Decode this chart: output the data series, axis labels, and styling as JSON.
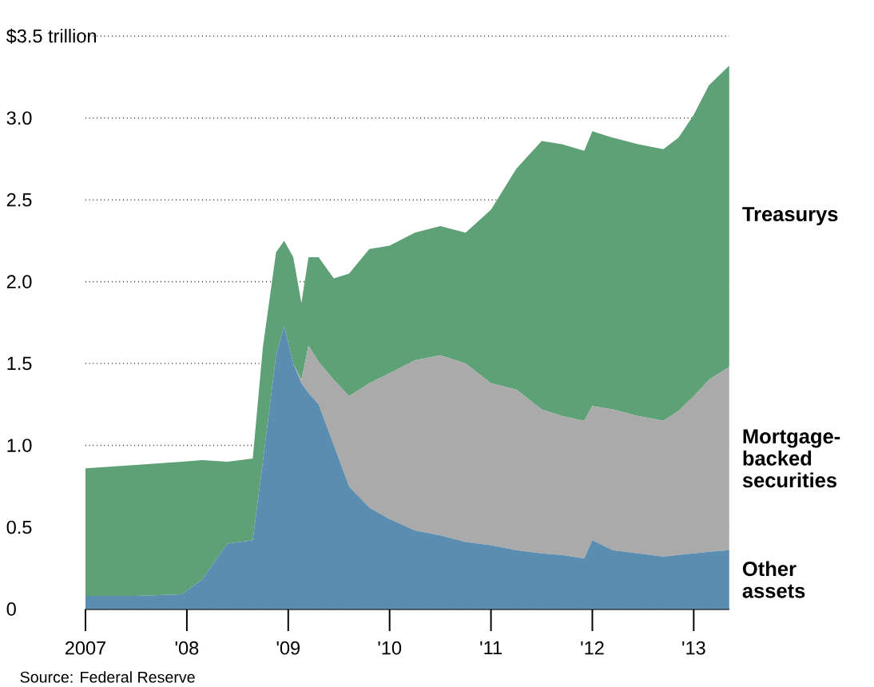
{
  "chart_data": {
    "type": "area",
    "stacked": true,
    "grid": "y",
    "x": [
      2007.0,
      2007.5,
      2007.95,
      2008.15,
      2008.4,
      2008.65,
      2008.75,
      2008.88,
      2008.96,
      2009.05,
      2009.13,
      2009.2,
      2009.3,
      2009.45,
      2009.6,
      2009.8,
      2010.0,
      2010.25,
      2010.5,
      2010.75,
      2011.0,
      2011.25,
      2011.5,
      2011.7,
      2011.92,
      2012.0,
      2012.2,
      2012.45,
      2012.7,
      2012.85,
      2013.0,
      2013.15,
      2013.35
    ],
    "series": [
      {
        "name": "Other assets",
        "color": "#5b8db0",
        "values": [
          0.08,
          0.08,
          0.09,
          0.18,
          0.4,
          0.42,
          0.9,
          1.55,
          1.73,
          1.5,
          1.38,
          1.32,
          1.25,
          1.0,
          0.75,
          0.62,
          0.55,
          0.48,
          0.45,
          0.41,
          0.39,
          0.36,
          0.34,
          0.33,
          0.31,
          0.42,
          0.36,
          0.34,
          0.32,
          0.33,
          0.34,
          0.35,
          0.36
        ]
      },
      {
        "name": "Mortgage-backed securities",
        "color": "#aaaaaa",
        "values": [
          0,
          0,
          0,
          0,
          0,
          0,
          0,
          0,
          0,
          0,
          0.02,
          0.29,
          0.26,
          0.4,
          0.55,
          0.76,
          0.89,
          1.04,
          1.1,
          1.09,
          0.99,
          0.98,
          0.88,
          0.85,
          0.84,
          0.82,
          0.86,
          0.84,
          0.83,
          0.88,
          0.96,
          1.05,
          1.12
        ]
      },
      {
        "name": "Treasurys",
        "color": "#5fa177",
        "values": [
          0.78,
          0.8,
          0.81,
          0.73,
          0.5,
          0.5,
          0.7,
          0.63,
          0.52,
          0.65,
          0.47,
          0.54,
          0.64,
          0.62,
          0.75,
          0.82,
          0.78,
          0.78,
          0.79,
          0.8,
          1.06,
          1.35,
          1.64,
          1.66,
          1.65,
          1.68,
          1.66,
          1.66,
          1.66,
          1.67,
          1.72,
          1.8,
          1.84
        ]
      }
    ],
    "xlim": [
      2007.0,
      2013.35
    ],
    "xticks": [
      2007,
      {
        "value": 2008,
        "label": "'08"
      },
      {
        "value": 2009,
        "label": "'09"
      },
      {
        "value": 2010,
        "label": "'10"
      },
      {
        "value": 2011,
        "label": "'11"
      },
      {
        "value": 2012,
        "label": "'12"
      },
      {
        "value": 2013,
        "label": "'13"
      }
    ],
    "ylim": [
      0,
      3.5
    ],
    "yticks": [
      0,
      0.5,
      {
        "value": 1,
        "label": "1.0"
      },
      1.5,
      {
        "value": 2,
        "label": "2.0"
      },
      2.5,
      {
        "value": 3,
        "label": "3.0"
      },
      {
        "value": 3.5,
        "label": "$3.5 trillion"
      }
    ],
    "annotations": [
      "Source: Federal Reserve"
    ]
  }
}
